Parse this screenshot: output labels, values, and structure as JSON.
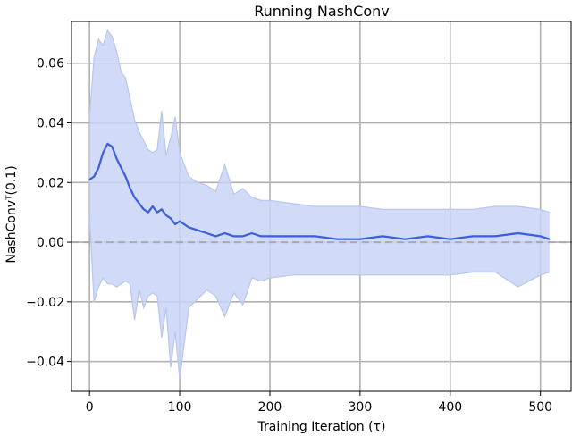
{
  "chart_data": {
    "type": "line",
    "title": "Running NashConv",
    "xlabel": "Training Iteration (τ)",
    "ylabel": "NashConvᵀ(0.1)",
    "xlim": [
      -20,
      535
    ],
    "ylim": [
      -0.05,
      0.074
    ],
    "xticks": [
      0,
      100,
      200,
      300,
      400,
      500
    ],
    "yticks": [
      -0.04,
      -0.02,
      0.0,
      0.02,
      0.04,
      0.06
    ],
    "ytick_labels": [
      "−0.04",
      "−0.02",
      "0.00",
      "0.02",
      "0.04",
      "0.06"
    ],
    "grid": true,
    "reference_line": {
      "y": 0.0,
      "style": "dashed",
      "color": "#aaaaaa"
    },
    "colors": {
      "mean": "#3a5fd9",
      "band": "#c9d3f5",
      "band_line": "#b8c6f0"
    },
    "series": [
      {
        "role": "mean",
        "x": [
          0,
          5,
          10,
          15,
          20,
          25,
          30,
          35,
          40,
          45,
          50,
          55,
          60,
          65,
          70,
          75,
          80,
          85,
          90,
          95,
          100,
          110,
          120,
          130,
          140,
          150,
          160,
          170,
          180,
          190,
          200,
          225,
          250,
          275,
          300,
          325,
          350,
          375,
          400,
          425,
          450,
          475,
          500,
          510
        ],
        "y": [
          0.021,
          0.022,
          0.025,
          0.03,
          0.033,
          0.032,
          0.028,
          0.025,
          0.022,
          0.018,
          0.015,
          0.013,
          0.011,
          0.01,
          0.012,
          0.01,
          0.011,
          0.009,
          0.008,
          0.006,
          0.007,
          0.005,
          0.004,
          0.003,
          0.002,
          0.003,
          0.002,
          0.002,
          0.003,
          0.002,
          0.002,
          0.002,
          0.002,
          0.001,
          0.001,
          0.002,
          0.001,
          0.002,
          0.001,
          0.002,
          0.002,
          0.003,
          0.002,
          0.001
        ]
      },
      {
        "role": "band-upper",
        "x": [
          0,
          5,
          10,
          15,
          20,
          25,
          30,
          35,
          40,
          45,
          50,
          55,
          60,
          65,
          70,
          75,
          80,
          85,
          90,
          95,
          100,
          110,
          120,
          130,
          140,
          150,
          160,
          170,
          180,
          190,
          200,
          225,
          250,
          275,
          300,
          325,
          350,
          375,
          400,
          425,
          450,
          475,
          500,
          510
        ],
        "y": [
          0.042,
          0.062,
          0.068,
          0.066,
          0.071,
          0.069,
          0.064,
          0.057,
          0.055,
          0.048,
          0.041,
          0.037,
          0.034,
          0.031,
          0.03,
          0.031,
          0.044,
          0.029,
          0.035,
          0.042,
          0.03,
          0.022,
          0.02,
          0.019,
          0.017,
          0.026,
          0.016,
          0.018,
          0.015,
          0.014,
          0.014,
          0.013,
          0.012,
          0.012,
          0.012,
          0.011,
          0.011,
          0.011,
          0.011,
          0.011,
          0.012,
          0.012,
          0.011,
          0.01
        ]
      },
      {
        "role": "band-lower",
        "x": [
          0,
          5,
          10,
          15,
          20,
          25,
          30,
          35,
          40,
          45,
          50,
          55,
          60,
          65,
          70,
          75,
          80,
          85,
          90,
          95,
          100,
          110,
          120,
          130,
          140,
          150,
          160,
          170,
          180,
          190,
          200,
          225,
          250,
          275,
          300,
          325,
          350,
          375,
          400,
          425,
          450,
          475,
          500,
          510
        ],
        "y": [
          0.008,
          -0.02,
          -0.015,
          -0.012,
          -0.014,
          -0.014,
          -0.015,
          -0.014,
          -0.013,
          -0.014,
          -0.026,
          -0.016,
          -0.022,
          -0.018,
          -0.017,
          -0.018,
          -0.032,
          -0.022,
          -0.042,
          -0.03,
          -0.046,
          -0.022,
          -0.019,
          -0.016,
          -0.018,
          -0.025,
          -0.017,
          -0.021,
          -0.012,
          -0.013,
          -0.012,
          -0.011,
          -0.011,
          -0.011,
          -0.011,
          -0.011,
          -0.011,
          -0.011,
          -0.011,
          -0.01,
          -0.01,
          -0.015,
          -0.011,
          -0.01
        ]
      }
    ]
  }
}
